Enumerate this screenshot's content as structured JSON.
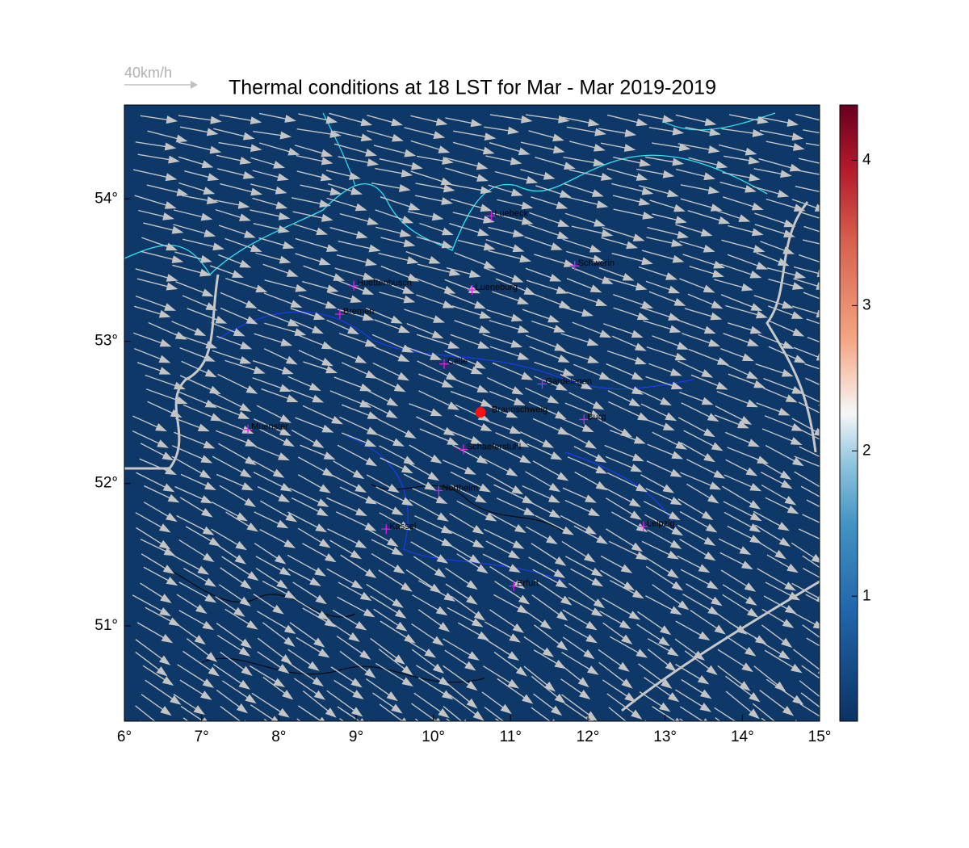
{
  "title": "Thermal conditions at 18 LST for Mar - Mar  2019-2019",
  "scale_label": "40km/h",
  "map": {
    "xlim": [
      6,
      15
    ],
    "ylim": [
      50.33,
      54.66
    ],
    "xticks": [
      {
        "value": 6,
        "label": "6°"
      },
      {
        "value": 7,
        "label": "7°"
      },
      {
        "value": 8,
        "label": "8°"
      },
      {
        "value": 9,
        "label": "9°"
      },
      {
        "value": 10,
        "label": "10°"
      },
      {
        "value": 11,
        "label": "11°"
      },
      {
        "value": 12,
        "label": "12°"
      },
      {
        "value": 13,
        "label": "13°"
      },
      {
        "value": 14,
        "label": "14°"
      },
      {
        "value": 15,
        "label": "15°"
      }
    ],
    "yticks": [
      {
        "value": 51,
        "label": "51°"
      },
      {
        "value": 52,
        "label": "52°"
      },
      {
        "value": 53,
        "label": "53°"
      },
      {
        "value": 54,
        "label": "54°"
      }
    ]
  },
  "colorbar": {
    "lim": [
      0.14,
      4.38
    ],
    "ticks": [
      1,
      2,
      3,
      4
    ]
  },
  "site": {
    "name": "Braunschweig",
    "lon": 10.61,
    "lat": 52.5
  },
  "cities": [
    {
      "name": "Luebeck",
      "lon": 10.75,
      "lat": 53.88
    },
    {
      "name": "Schwerin",
      "lon": 11.83,
      "lat": 53.53
    },
    {
      "name": "Huettenbusch",
      "lon": 8.97,
      "lat": 53.39
    },
    {
      "name": "Lueneburg",
      "lon": 10.5,
      "lat": 53.36
    },
    {
      "name": "Bremen",
      "lon": 8.79,
      "lat": 53.19
    },
    {
      "name": "Celle",
      "lon": 10.14,
      "lat": 52.84
    },
    {
      "name": "Gardelegen",
      "lon": 11.41,
      "lat": 52.7
    },
    {
      "name": "Burg",
      "lon": 11.95,
      "lat": 52.45
    },
    {
      "name": "Muenster",
      "lon": 7.6,
      "lat": 52.38
    },
    {
      "name": "Schaeferstuhl",
      "lon": 10.39,
      "lat": 52.24
    },
    {
      "name": "Northeim",
      "lon": 10.07,
      "lat": 51.95
    },
    {
      "name": "Kassel",
      "lon": 9.39,
      "lat": 51.68
    },
    {
      "name": "Leipzig",
      "lon": 12.72,
      "lat": 51.7
    },
    {
      "name": "Erfurt",
      "lon": 11.04,
      "lat": 51.28
    }
  ]
}
